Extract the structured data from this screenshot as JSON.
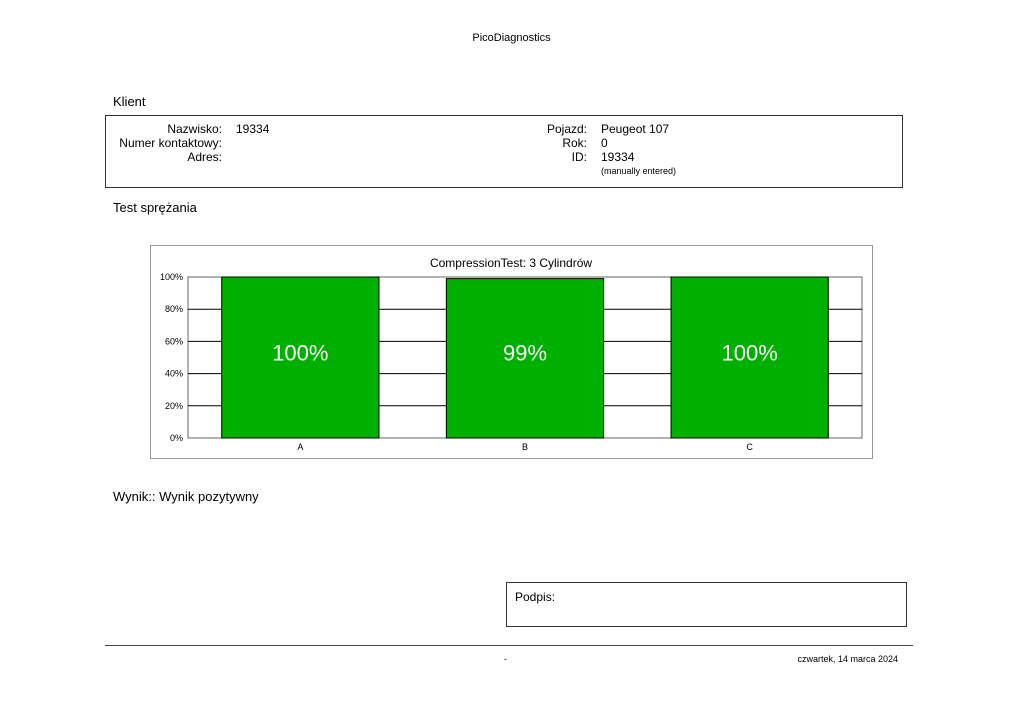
{
  "header": {
    "title": "PicoDiagnostics"
  },
  "client": {
    "section_title": "Klient",
    "name_label": "Nazwisko:",
    "name_value": "19334",
    "contact_label": "Numer kontaktowy:",
    "contact_value": "",
    "address_label": "Adres:",
    "address_value": "",
    "vehicle_label": "Pojazd:",
    "vehicle_value": "Peugeot 107",
    "year_label": "Rok:",
    "year_value": "0",
    "id_label": "ID:",
    "id_value": "19334",
    "id_note": "(manually entered)"
  },
  "test": {
    "section_title": "Test sprężania"
  },
  "chart_data": {
    "type": "bar",
    "title": "CompressionTest: 3 Cylindrów",
    "categories": [
      "A",
      "B",
      "C"
    ],
    "values": [
      100,
      99,
      100
    ],
    "data_labels": [
      "100%",
      "99%",
      "100%"
    ],
    "yticks": [
      "0%",
      "20%",
      "40%",
      "60%",
      "80%",
      "100%"
    ],
    "ylim": [
      0,
      100
    ],
    "grid": true,
    "bar_color": "#00b000",
    "xlabel": "",
    "ylabel": ""
  },
  "result": {
    "text": "Wynik:: Wynik pozytywny"
  },
  "signature": {
    "label": "Podpis:"
  },
  "footer": {
    "middle": "-",
    "date": "czwartek, 14 marca 2024"
  }
}
